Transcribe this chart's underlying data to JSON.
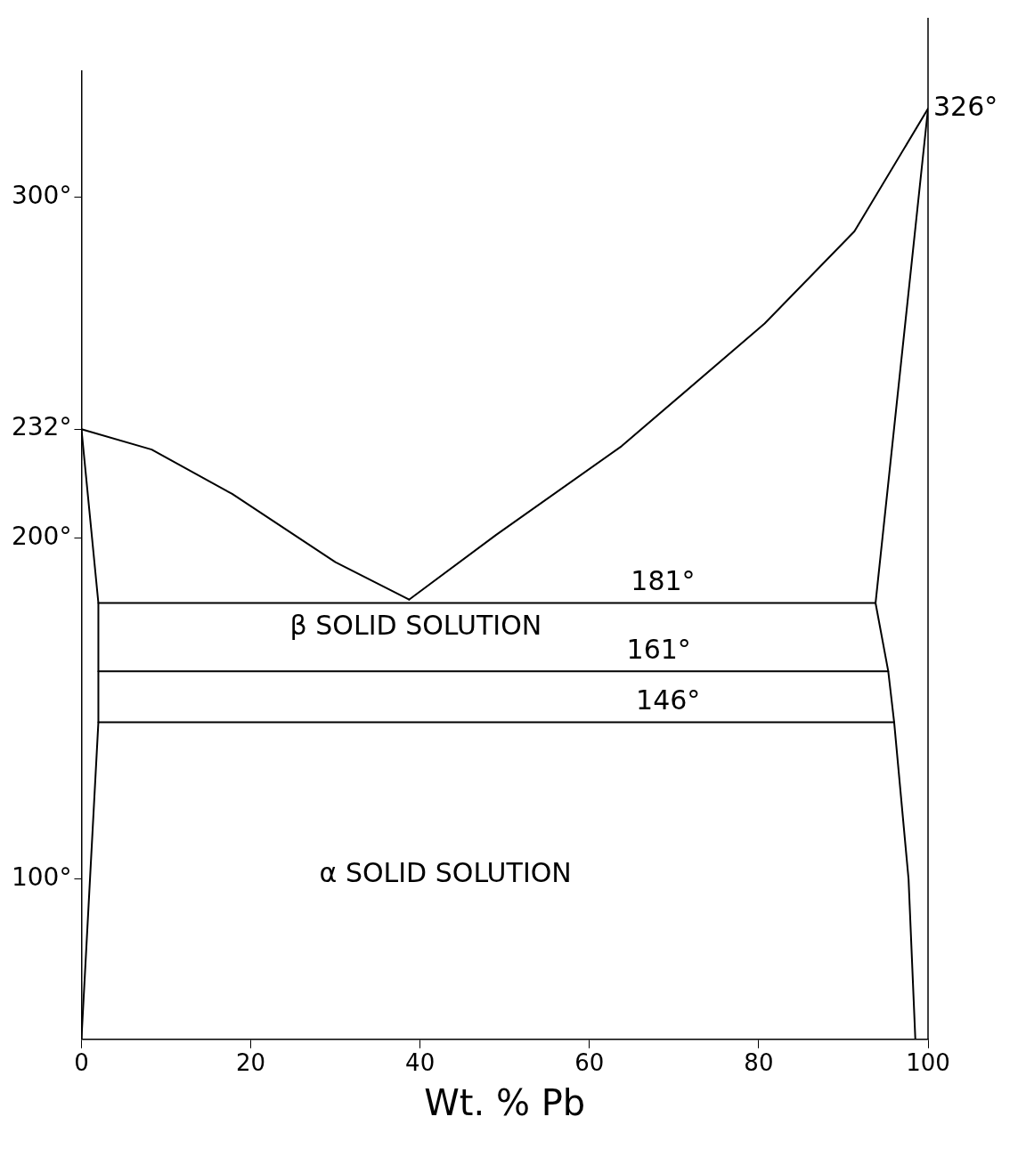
{
  "chart_data": {
    "type": "line",
    "xlabel": "Wt. % Pb",
    "xlim": [
      0,
      100
    ],
    "ylim": [
      53,
      337
    ],
    "xticks": [
      0,
      20,
      40,
      60,
      80,
      100
    ],
    "yticks": [
      {
        "value": 100,
        "label": "100°"
      },
      {
        "value": 200,
        "label": "200°"
      },
      {
        "value": 232,
        "label": "232°"
      },
      {
        "value": 300,
        "label": "300°"
      }
    ],
    "grid": false,
    "legend": false,
    "marker": "none",
    "line_style": "solid",
    "series": [
      {
        "color": "#000000",
        "x": [
          0,
          8.3,
          17.8,
          30,
          38.7
        ],
        "values": [
          232,
          226,
          213,
          193,
          182
        ]
      },
      {
        "color": "#000000",
        "x": [
          38.7,
          49,
          63.8,
          80.7,
          91.3,
          100
        ],
        "values": [
          182,
          201,
          227,
          263,
          290,
          326
        ]
      },
      {
        "color": "#000000",
        "x": [
          0,
          2,
          2,
          0
        ],
        "values": [
          232,
          181,
          146,
          53
        ]
      },
      {
        "color": "#000000",
        "x": [
          100,
          93.8,
          95.3,
          96,
          97.7,
          98.5
        ],
        "values": [
          326,
          181,
          161,
          146,
          100,
          53
        ]
      },
      {
        "color": "#000000",
        "x": [
          2,
          93.8
        ],
        "values": [
          181,
          181
        ]
      },
      {
        "color": "#000000",
        "x": [
          2,
          95.3
        ],
        "values": [
          161,
          161
        ]
      },
      {
        "color": "#000000",
        "x": [
          2,
          96
        ],
        "values": [
          146,
          146
        ]
      }
    ],
    "annotations": [
      {
        "text": "181°",
        "x": 68.7,
        "y": 181
      },
      {
        "text": "161°",
        "x": 68.2,
        "y": 161
      },
      {
        "text": "146°",
        "x": 69.3,
        "y": 146
      },
      {
        "text": "326°",
        "x": 100,
        "y": 326
      },
      "β SOLID SOLUTION",
      "α SOLID SOLUTION"
    ]
  }
}
